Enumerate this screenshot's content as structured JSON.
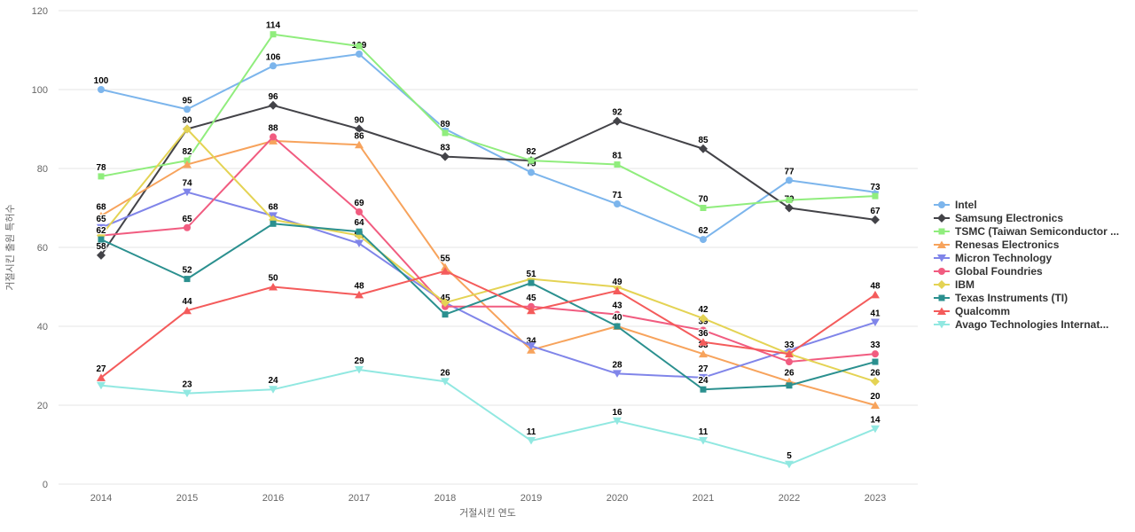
{
  "chart_data": {
    "type": "line",
    "title": "",
    "xlabel": "거절시킨 연도",
    "ylabel": "거절시킨 출원 특허수",
    "x": [
      "2014",
      "2015",
      "2016",
      "2017",
      "2018",
      "2019",
      "2020",
      "2021",
      "2022",
      "2023"
    ],
    "ylim": [
      0,
      120
    ],
    "yticks": [
      0,
      20,
      40,
      60,
      80,
      100,
      120
    ],
    "grid": true,
    "legend_position": "right",
    "series": [
      {
        "name": "Intel",
        "color": "#7cb5ec",
        "marker": "circle",
        "values": [
          100,
          95,
          106,
          109,
          90,
          79,
          71,
          62,
          77,
          74
        ],
        "labels": [
          100,
          95,
          106,
          109,
          null,
          79,
          71,
          62,
          77,
          null
        ]
      },
      {
        "name": "Samsung Electronics",
        "color": "#434348",
        "marker": "diamond",
        "values": [
          58,
          90,
          96,
          90,
          83,
          82,
          92,
          85,
          70,
          67
        ],
        "labels": [
          58,
          90,
          96,
          90,
          83,
          82,
          92,
          85,
          70,
          67
        ]
      },
      {
        "name": "TSMC (Taiwan Semiconductor ...",
        "color": "#90ed7d",
        "marker": "square",
        "values": [
          78,
          82,
          114,
          111,
          89,
          82,
          81,
          70,
          72,
          73
        ],
        "labels": [
          78,
          82,
          114,
          null,
          89,
          null,
          81,
          70,
          null,
          73
        ]
      },
      {
        "name": "Renesas Electronics",
        "color": "#f7a35c",
        "marker": "triangle",
        "values": [
          68,
          81,
          87,
          86,
          55,
          34,
          40,
          33,
          26,
          20
        ],
        "labels": [
          68,
          null,
          null,
          86,
          55,
          34,
          null,
          33,
          26,
          20
        ]
      },
      {
        "name": "Micron Technology",
        "color": "#8085e9",
        "marker": "triangle-down",
        "values": [
          65,
          74,
          68,
          61,
          46,
          35,
          28,
          27,
          34,
          41
        ],
        "labels": [
          65,
          74,
          68,
          61,
          null,
          null,
          28,
          27,
          null,
          41
        ]
      },
      {
        "name": "Global Foundries",
        "color": "#f15c80",
        "marker": "circle",
        "values": [
          63,
          65,
          88,
          69,
          45,
          45,
          43,
          39,
          31,
          33
        ],
        "labels": [
          null,
          65,
          88,
          69,
          45,
          45,
          43,
          39,
          null,
          33
        ]
      },
      {
        "name": "IBM",
        "color": "#e4d354",
        "marker": "diamond",
        "values": [
          63,
          90,
          67,
          63,
          46,
          52,
          50,
          42,
          33,
          26
        ],
        "labels": [
          null,
          null,
          null,
          null,
          null,
          null,
          null,
          42,
          33,
          26
        ]
      },
      {
        "name": "Texas Instruments (TI)",
        "color": "#2b908f",
        "marker": "square",
        "values": [
          62,
          52,
          66,
          64,
          43,
          51,
          40,
          24,
          25,
          31
        ],
        "labels": [
          62,
          52,
          null,
          64,
          null,
          51,
          40,
          24,
          null,
          null
        ]
      },
      {
        "name": "Qualcomm",
        "color": "#f45b5b",
        "marker": "triangle",
        "values": [
          27,
          44,
          50,
          48,
          54,
          44,
          49,
          36,
          33,
          48
        ],
        "labels": [
          27,
          44,
          50,
          48,
          null,
          null,
          49,
          36,
          null,
          48
        ]
      },
      {
        "name": "Avago Technologies Internat...",
        "color": "#91e8e1",
        "marker": "triangle-down",
        "values": [
          25,
          23,
          24,
          29,
          26,
          11,
          16,
          11,
          5,
          14
        ],
        "labels": [
          null,
          23,
          24,
          29,
          26,
          11,
          16,
          11,
          5,
          14
        ]
      }
    ]
  }
}
